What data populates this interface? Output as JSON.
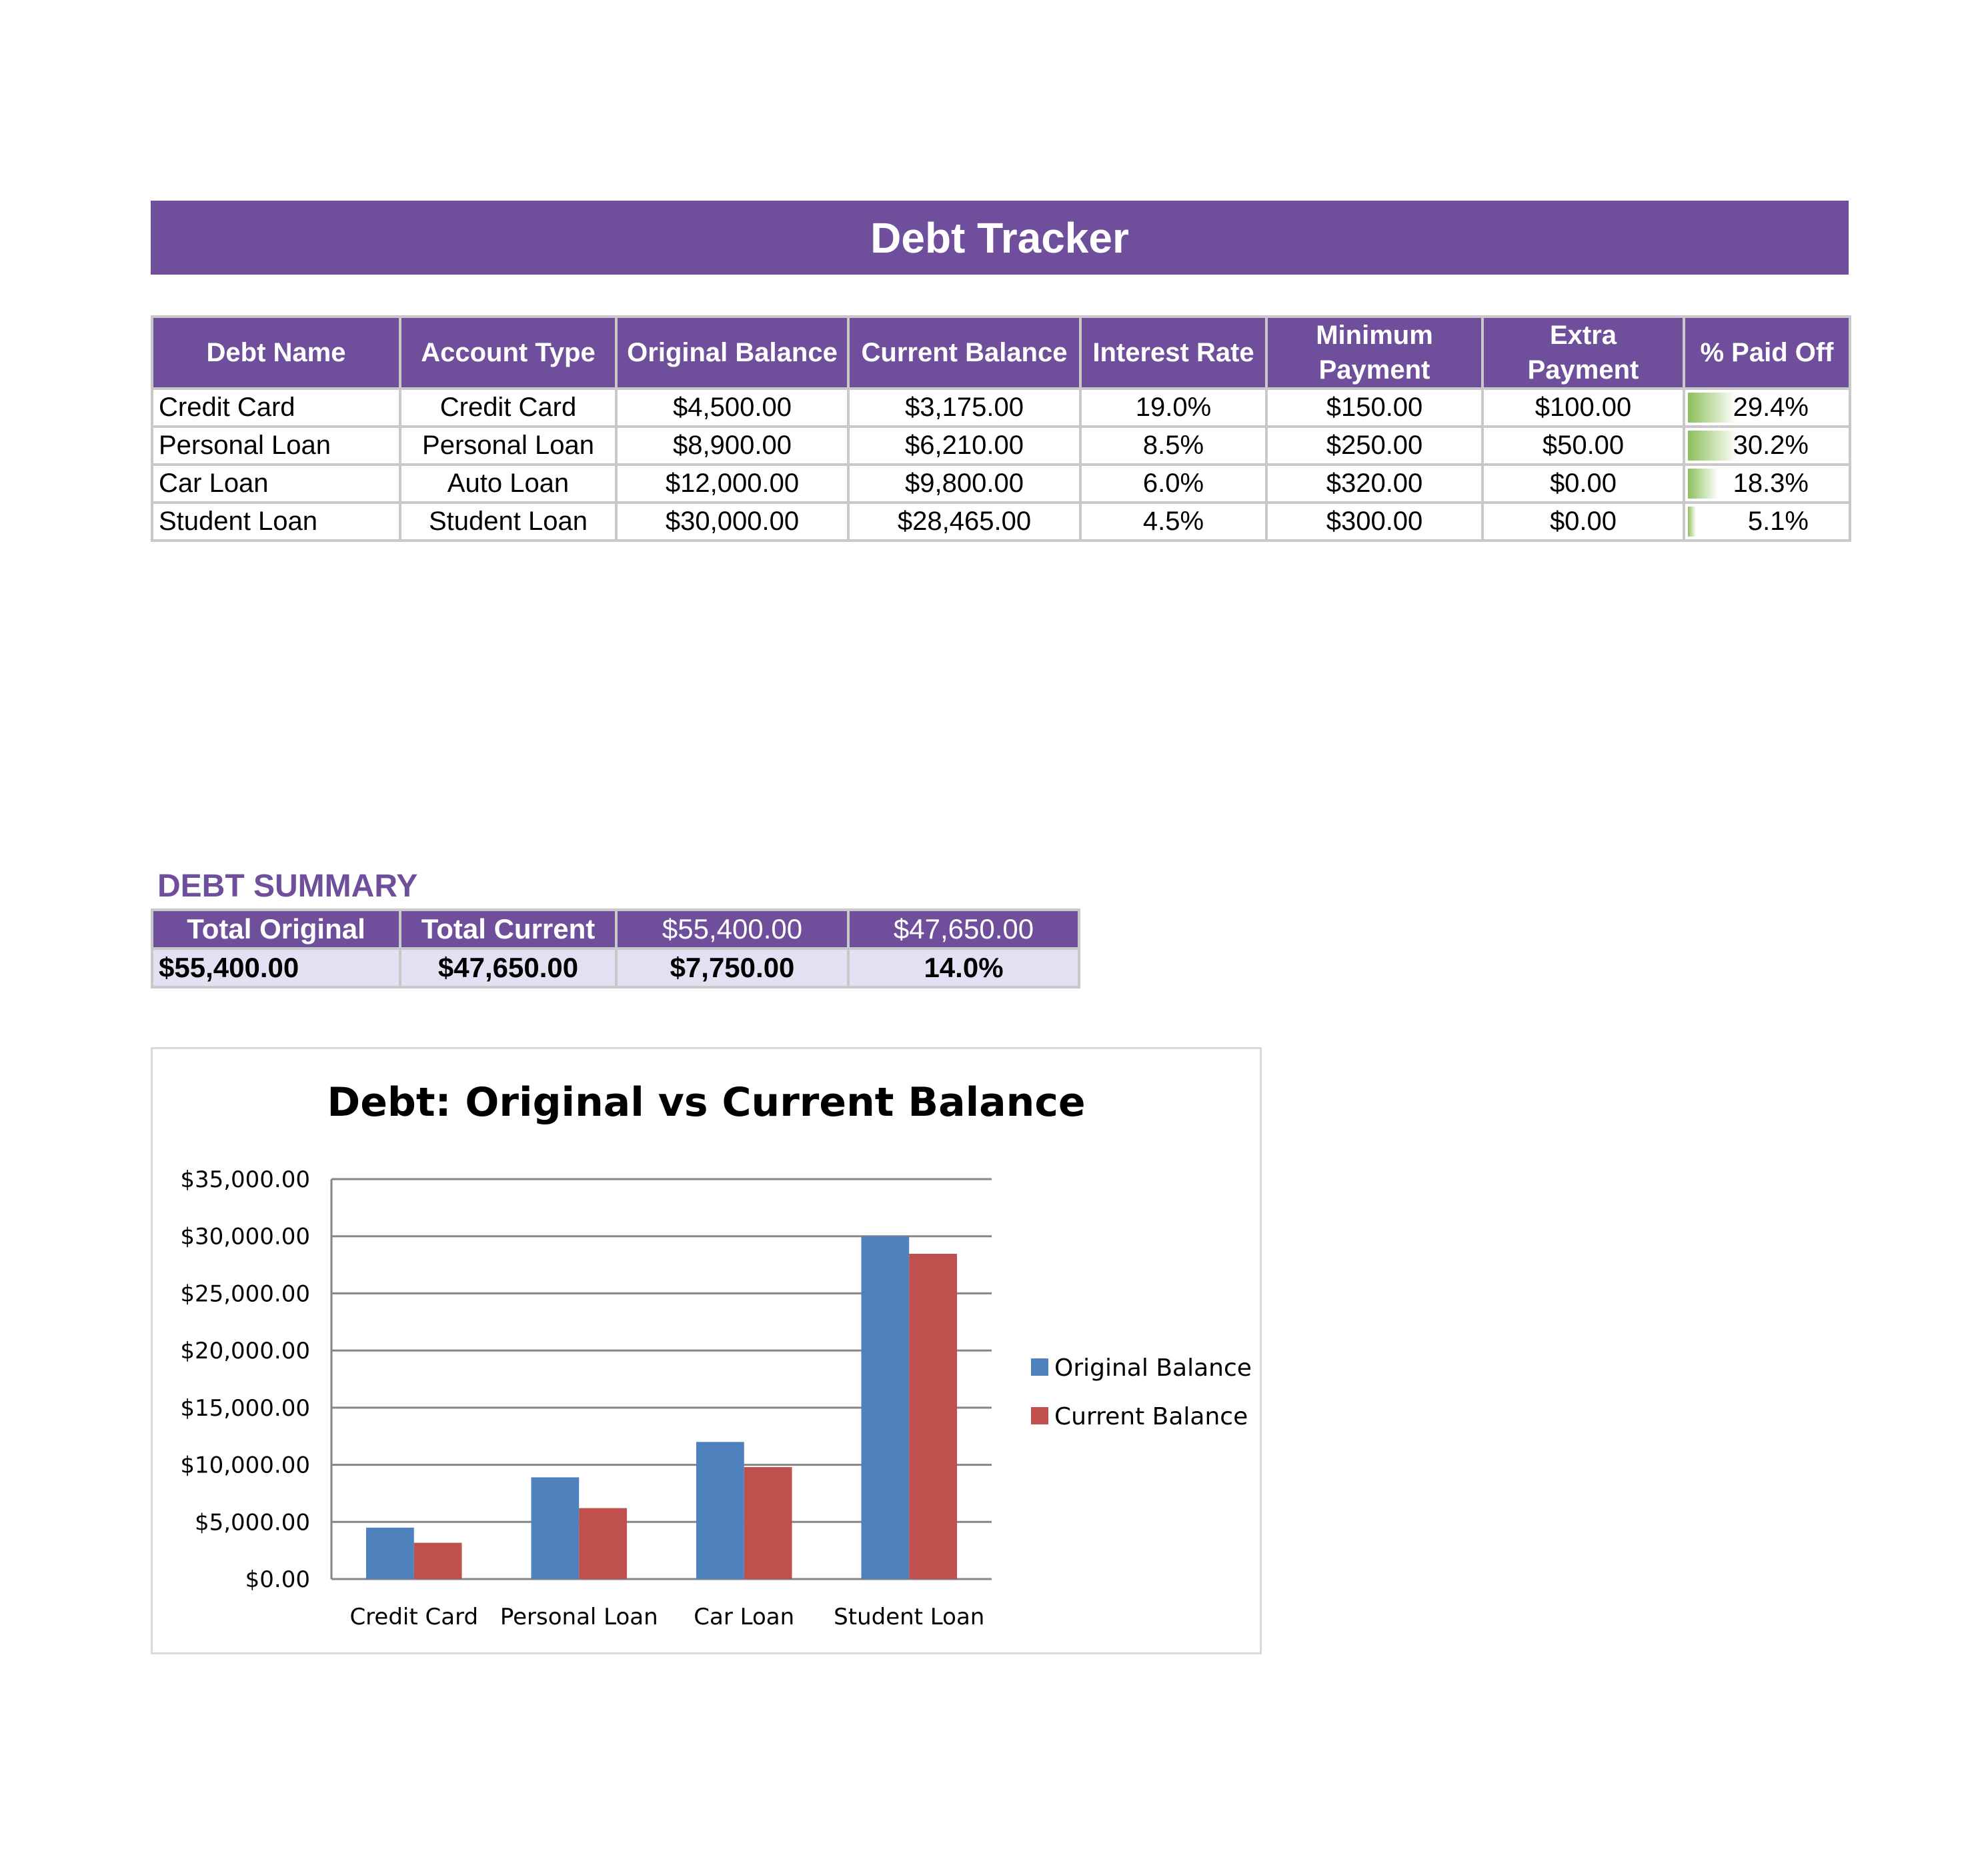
{
  "header": {
    "title": "Debt Tracker"
  },
  "table": {
    "columns": [
      "Debt Name",
      "Account Type",
      "Original Balance",
      "Current Balance",
      "Interest Rate",
      "Minimum Payment",
      "Extra Payment",
      "% Paid Off"
    ],
    "rows": [
      {
        "name": "Credit Card",
        "type": "Credit Card",
        "original": "$4,500.00",
        "current": "$3,175.00",
        "rate": "19.0%",
        "minimum": "$150.00",
        "extra": "$100.00",
        "paid": "29.4%",
        "paid_fraction": 0.294
      },
      {
        "name": "Personal Loan",
        "type": "Personal Loan",
        "original": "$8,900.00",
        "current": "$6,210.00",
        "rate": "8.5%",
        "minimum": "$250.00",
        "extra": "$50.00",
        "paid": "30.2%",
        "paid_fraction": 0.302
      },
      {
        "name": "Car Loan",
        "type": "Auto Loan",
        "original": "$12,000.00",
        "current": "$9,800.00",
        "rate": "6.0%",
        "minimum": "$320.00",
        "extra": "$0.00",
        "paid": "18.3%",
        "paid_fraction": 0.183
      },
      {
        "name": "Student Loan",
        "type": "Student Loan",
        "original": "$30,000.00",
        "current": "$28,465.00",
        "rate": "4.5%",
        "minimum": "$300.00",
        "extra": "$0.00",
        "paid": "5.1%",
        "paid_fraction": 0.051
      }
    ]
  },
  "summary": {
    "label": "DEBT SUMMARY",
    "headers": [
      "Total Original",
      "Total Current",
      "$55,400.00",
      "$47,650.00"
    ],
    "values": [
      "$55,400.00",
      "$47,650.00",
      "$7,750.00",
      "14.0%"
    ]
  },
  "colors": {
    "header_purple": "#6f4f9b",
    "summary_row_bg": "#e5dff3",
    "paid_bar": "#8cbf5a",
    "original_series": "#4f81bd",
    "current_series": "#c0504d",
    "gridline": "#868686"
  },
  "chart_data": {
    "type": "bar",
    "title": "Debt: Original vs Current Balance",
    "categories": [
      "Credit Card",
      "Personal Loan",
      "Car Loan",
      "Student Loan"
    ],
    "series": [
      {
        "name": "Original Balance",
        "values": [
          4500,
          8900,
          12000,
          30000
        ]
      },
      {
        "name": "Current Balance",
        "values": [
          3175,
          6210,
          9800,
          28465
        ]
      }
    ],
    "ylim": [
      0,
      35000
    ],
    "yticks": [
      0,
      5000,
      10000,
      15000,
      20000,
      25000,
      30000,
      35000
    ],
    "ytick_labels": [
      "$0.00",
      "$5,000.00",
      "$10,000.00",
      "$15,000.00",
      "$20,000.00",
      "$25,000.00",
      "$30,000.00",
      "$35,000.00"
    ],
    "xlabel": "",
    "ylabel": "",
    "grid": true,
    "legend": "right"
  }
}
